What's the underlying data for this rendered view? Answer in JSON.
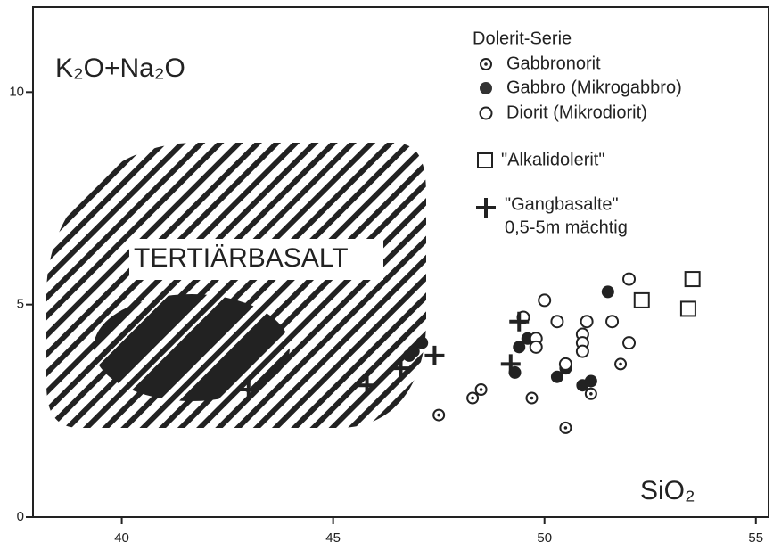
{
  "chart_data": {
    "type": "scatter",
    "y_label": "K₂O+Na₂O",
    "x_label": "SiO₂",
    "annotation": "TERTIÄRBASALT",
    "legend_title": "Dolerit-Serie",
    "xlim": [
      37.9,
      55.3
    ],
    "xticks": [
      40,
      45,
      50,
      55
    ],
    "ylim": [
      0,
      12
    ],
    "yticks": [
      0,
      5,
      10
    ],
    "series": [
      {
        "name": "Gabbronorit",
        "marker": "dotted-circle",
        "color": "#222",
        "x": [
          47.5,
          48.3,
          48.5,
          49.7,
          50.5,
          51.1,
          51.8
        ],
        "values": [
          2.4,
          2.8,
          3.0,
          2.8,
          2.1,
          2.9,
          3.6
        ]
      },
      {
        "name": "Gabbro (Mikrogabbro)",
        "marker": "filled-circle",
        "color": "#222",
        "x": [
          46.8,
          46.9,
          47.1,
          49.3,
          49.4,
          49.6,
          50.3,
          50.5,
          50.9,
          51.1,
          51.5
        ],
        "values": [
          3.8,
          3.9,
          4.1,
          3.4,
          4.0,
          4.2,
          3.3,
          3.5,
          3.1,
          3.2,
          5.3
        ]
      },
      {
        "name": "Diorit (Mikrodiorit)",
        "marker": "open-circle",
        "color": "#222",
        "x": [
          50.0,
          49.5,
          49.8,
          49.8,
          50.3,
          50.5,
          50.9,
          50.9,
          50.9,
          51.0,
          51.6,
          52.0,
          52.0
        ],
        "values": [
          5.1,
          4.7,
          4.2,
          4.0,
          4.6,
          3.6,
          4.3,
          4.1,
          3.9,
          4.6,
          4.6,
          5.6,
          4.1
        ]
      },
      {
        "name": "\"Alkalidolerit\"",
        "marker": "square",
        "color": "#222",
        "x": [
          52.3,
          53.4,
          53.5
        ],
        "values": [
          5.1,
          4.9,
          5.6
        ]
      },
      {
        "name": "\"Gangbasalte\"",
        "note": "0,5-5m mächtig",
        "marker": "plus",
        "color": "#222",
        "x": [
          43.0,
          45.8,
          46.6,
          47.4,
          49.4,
          49.2
        ],
        "values": [
          3.0,
          3.1,
          3.5,
          3.8,
          4.6,
          3.6
        ]
      }
    ]
  }
}
